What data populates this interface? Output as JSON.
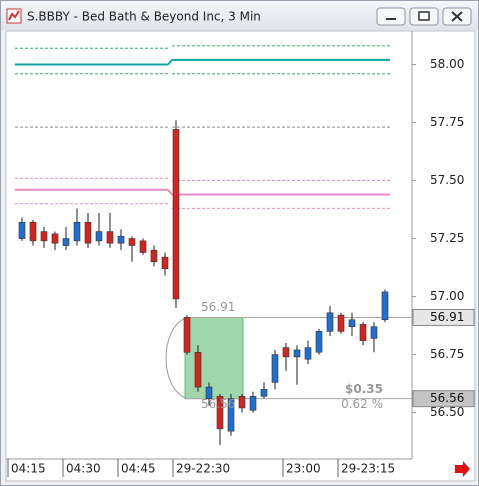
{
  "window_title": "S.BBBY - Bed Bath & Beyond Inc, 3 Min",
  "chart_data": {
    "type": "candlestick",
    "categories": [
      "04:15",
      null,
      null,
      null,
      null,
      "04:30",
      null,
      null,
      null,
      null,
      "04:45",
      null,
      null,
      null,
      null,
      "29-22:30",
      null,
      null,
      null,
      null,
      null,
      null,
      null,
      null,
      null,
      "23:00",
      null,
      null,
      null,
      null,
      "29-23:15",
      null,
      null,
      null,
      null
    ],
    "open": [
      null,
      57.25,
      57.32,
      57.28,
      57.27,
      57.22,
      57.24,
      57.32,
      57.24,
      57.28,
      57.23,
      57.25,
      57.24,
      57.2,
      57.17,
      57.72,
      56.91,
      56.76,
      56.56,
      56.57,
      56.42,
      56.57,
      56.51,
      56.57,
      56.63,
      56.78,
      56.74,
      56.73,
      56.76,
      56.85,
      56.92,
      56.87,
      56.88,
      56.82,
      56.9
    ],
    "high": [
      null,
      57.34,
      57.33,
      57.3,
      57.28,
      57.3,
      57.38,
      57.36,
      57.36,
      57.36,
      57.29,
      57.26,
      57.25,
      57.22,
      57.19,
      57.76,
      56.92,
      56.79,
      56.63,
      56.58,
      56.58,
      56.58,
      56.59,
      56.63,
      56.77,
      56.8,
      56.79,
      56.81,
      56.86,
      56.96,
      56.93,
      56.93,
      56.89,
      56.89,
      57.03
    ],
    "low": [
      null,
      57.24,
      57.22,
      57.21,
      57.2,
      57.2,
      57.22,
      57.21,
      57.22,
      57.21,
      57.2,
      57.15,
      57.18,
      57.13,
      57.09,
      56.95,
      56.75,
      56.59,
      56.53,
      56.36,
      56.4,
      56.5,
      56.5,
      56.56,
      56.6,
      56.68,
      56.62,
      56.71,
      56.75,
      56.83,
      56.84,
      56.83,
      56.79,
      56.76,
      56.89
    ],
    "close": [
      null,
      57.32,
      57.24,
      57.24,
      57.23,
      57.25,
      57.32,
      57.23,
      57.28,
      57.23,
      57.26,
      57.22,
      57.19,
      57.15,
      57.12,
      56.99,
      56.76,
      56.61,
      56.61,
      56.43,
      56.56,
      56.52,
      56.57,
      56.6,
      56.75,
      56.74,
      56.77,
      56.78,
      56.85,
      56.93,
      56.85,
      56.9,
      56.81,
      56.87,
      57.02
    ],
    "up_color": "#1f6fd0",
    "down_color": "#d42420",
    "ylim": [
      56.3,
      58.14
    ],
    "yticks": [
      {
        "value": 56.5,
        "label": "56.50"
      },
      56.75,
      {
        "value": 57,
        "label": "57.00"
      },
      57.25,
      {
        "value": 57.5,
        "label": "57.50"
      },
      57.75,
      {
        "value": 58,
        "label": "58.00"
      }
    ],
    "overlays": [
      {
        "color": "#2fb46a",
        "dash": true,
        "values": [
          58.07,
          58.08
        ]
      },
      {
        "color": "#13a3a3",
        "dash": false,
        "values": [
          58.0,
          58.02
        ]
      },
      {
        "color": "#2fb46a",
        "dash": true,
        "values": [
          57.96,
          57.96
        ]
      },
      {
        "color": "#8a8a8a",
        "dash": true,
        "values": [
          57.73,
          57.73
        ]
      },
      {
        "color": "#e58cc4",
        "dash": true,
        "values": [
          57.51,
          57.5
        ]
      },
      {
        "color": "#e58cc4",
        "dash": false,
        "values": [
          57.46,
          57.44
        ]
      },
      {
        "color": "#e58cc4",
        "dash": true,
        "values": [
          57.4,
          57.38
        ]
      }
    ],
    "measure": {
      "high": 56.91,
      "low": 56.56,
      "change_label": "$0.35",
      "percent_label": "0.62 %"
    }
  }
}
